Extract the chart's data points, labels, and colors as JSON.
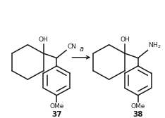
{
  "bg_color": "#ffffff",
  "line_color": "#1a1a1a",
  "text_color": "#1a1a1a",
  "arrow_label": "a",
  "compound_37_label": "37",
  "compound_38_label": "38",
  "figsize": [
    2.34,
    1.68
  ],
  "dpi": 100,
  "lw": 1.1
}
